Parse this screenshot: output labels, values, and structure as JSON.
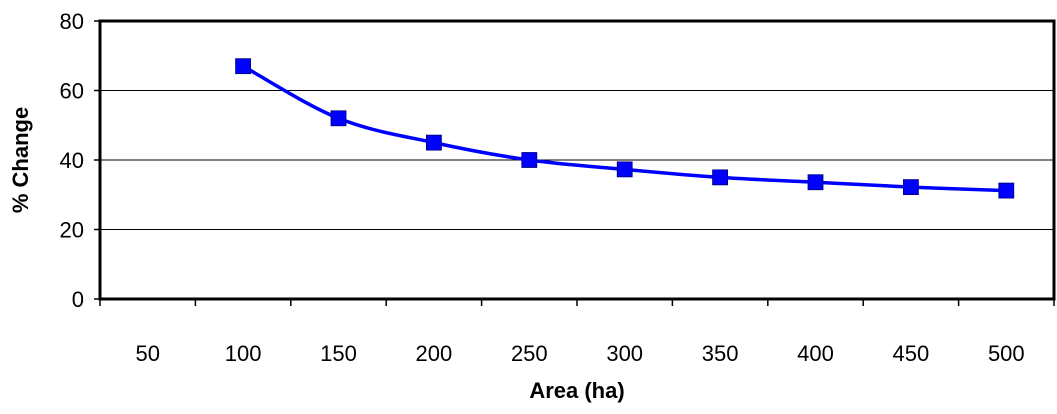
{
  "chart_data": {
    "type": "line",
    "title": "",
    "xlabel": "Area (ha)",
    "ylabel": "% Change",
    "categories": [
      "50",
      "100",
      "150",
      "200",
      "250",
      "300",
      "350",
      "400",
      "450",
      "500"
    ],
    "ylim": [
      0,
      80
    ],
    "yticks": [
      "0",
      "20",
      "40",
      "60",
      "80"
    ],
    "grid": true,
    "legend": "none",
    "series": [
      {
        "color": "#0000ff",
        "marker": "square",
        "smooth": true,
        "points": [
          {
            "x": "100",
            "y": 67
          },
          {
            "x": "150",
            "y": 52
          },
          {
            "x": "200",
            "y": 45
          },
          {
            "x": "250",
            "y": 40
          },
          {
            "x": "300",
            "y": 37.3
          },
          {
            "x": "350",
            "y": 35
          },
          {
            "x": "400",
            "y": 33.6
          },
          {
            "x": "450",
            "y": 32.2
          },
          {
            "x": "500",
            "y": 31.2
          }
        ]
      }
    ]
  }
}
